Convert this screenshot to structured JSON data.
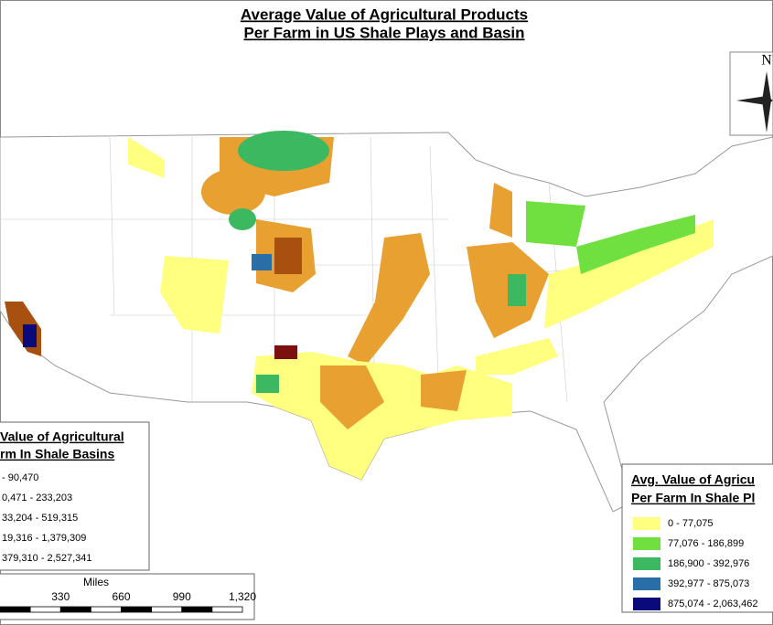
{
  "title": [
    "Average Value of Agricultural Products",
    "Per Farm in US Shale Plays and Basin"
  ],
  "north_label": "N",
  "legend_basins": {
    "title": [
      "Value of Agricultural",
      "rm In Shale Basins"
    ],
    "items": [
      "- 90,470",
      "0,471 - 233,203",
      "33,204 - 519,315",
      "19,316 - 1,379,309",
      "379,310 - 2,527,341"
    ]
  },
  "legend_plays": {
    "title": [
      "Avg. Value of Agricu",
      "Per Farm In Shale Pl"
    ],
    "items": [
      {
        "label": "0 - 77,075",
        "color": "#ffff80"
      },
      {
        "label": "77,076 - 186,899",
        "color": "#70e040"
      },
      {
        "label": "186,900 - 392,976",
        "color": "#3cb860"
      },
      {
        "label": "392,977 - 875,073",
        "color": "#2a6ea8"
      },
      {
        "label": "875,074 - 2,063,462",
        "color": "#0a0a7a"
      }
    ]
  },
  "scale": {
    "unit": "Miles",
    "labels": [
      "330",
      "660",
      "990",
      "1,320"
    ]
  }
}
